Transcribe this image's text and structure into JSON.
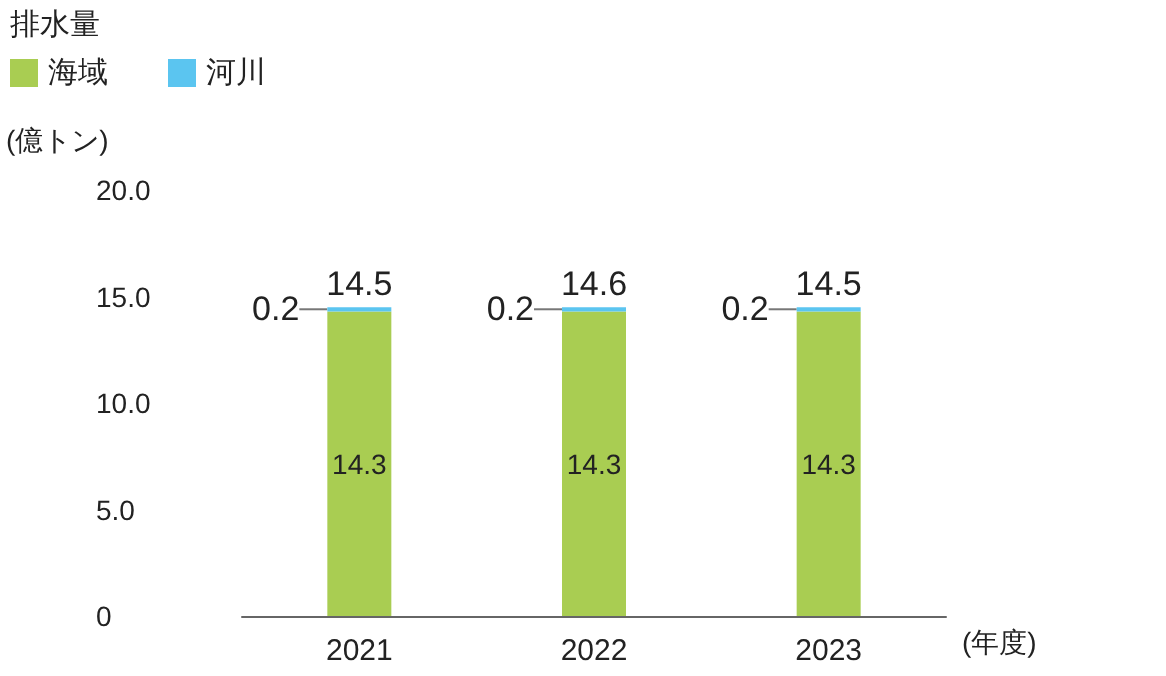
{
  "chart_data": {
    "type": "bar",
    "title": "排水量",
    "ylabel": "(億トン)",
    "xlabel": "(年度)",
    "categories": [
      "2021",
      "2022",
      "2023"
    ],
    "series": [
      {
        "name": "海域",
        "color": "#a9cd52",
        "values": [
          14.3,
          14.3,
          14.3
        ]
      },
      {
        "name": "河川",
        "color": "#5bc5f0",
        "values": [
          0.2,
          0.2,
          0.2
        ]
      }
    ],
    "stacked": true,
    "data_labels": true,
    "totals": [
      "14.5",
      "14.6",
      "14.5"
    ],
    "ylim": [
      0,
      20
    ],
    "yticks": [
      {
        "value": 0,
        "label": "0"
      },
      {
        "value": 5,
        "label": "5.0"
      },
      {
        "value": 10,
        "label": "10.0"
      },
      {
        "value": 15,
        "label": "15.0"
      },
      {
        "value": 20,
        "label": "20.0"
      }
    ],
    "legend": "top left",
    "grid": false
  }
}
